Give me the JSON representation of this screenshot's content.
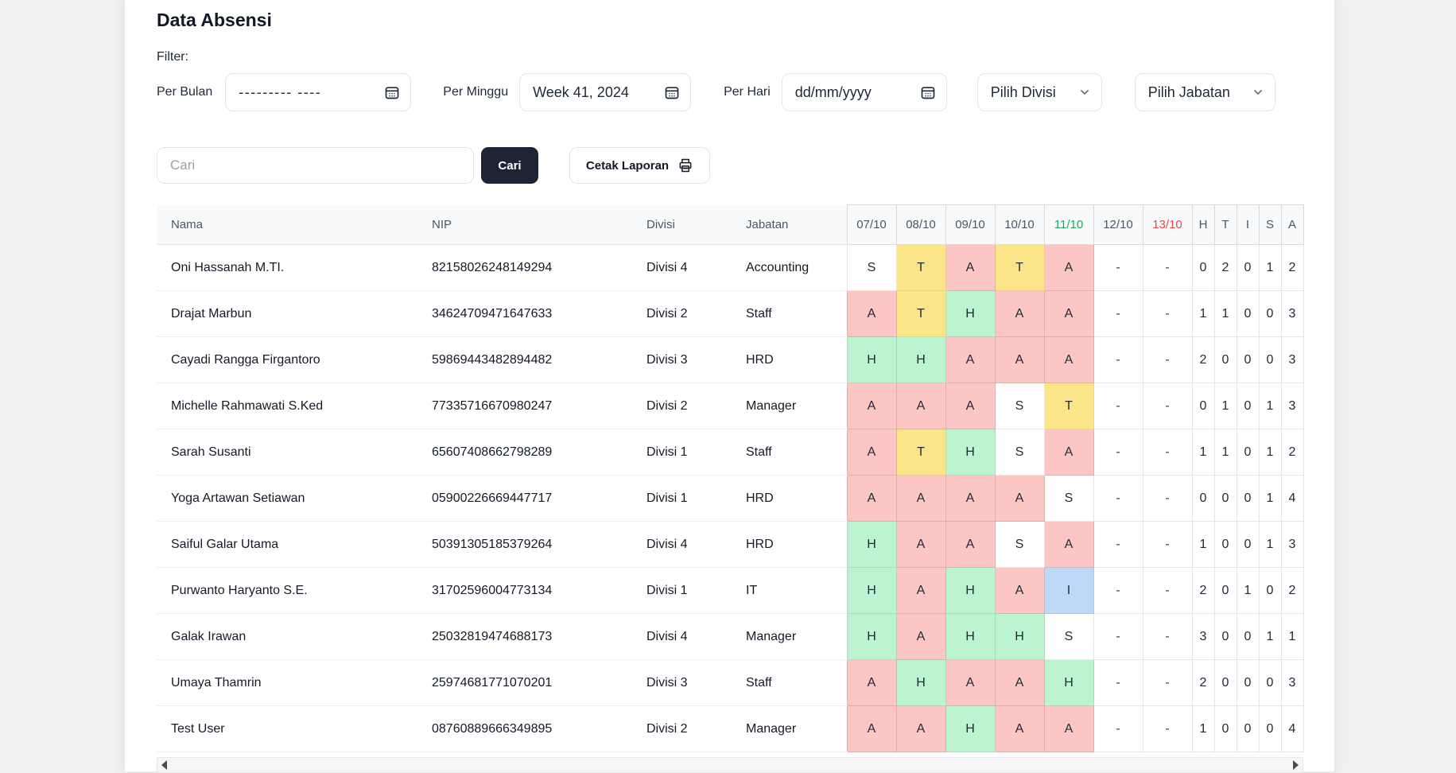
{
  "page": {
    "title": "Data Absensi",
    "filter_label": "Filter:"
  },
  "filters": {
    "per_bulan": {
      "label": "Per Bulan",
      "value": "--------- ----"
    },
    "per_minggu": {
      "label": "Per Minggu",
      "value": "Week 41, 2024"
    },
    "per_hari": {
      "label": "Per Hari",
      "value": "dd/mm/yyyy"
    },
    "divisi": {
      "placeholder": "Pilih Divisi"
    },
    "jabatan": {
      "placeholder": "Pilih Jabatan"
    }
  },
  "search": {
    "placeholder": "Cari",
    "button_label": "Cari",
    "print_label": "Cetak Laporan"
  },
  "icons": {
    "calendar": "calendar-icon",
    "chevron": "chevron-down-icon",
    "printer": "printer-icon",
    "scroll_left": "scroll-left-arrow-icon",
    "scroll_right": "scroll-right-arrow-icon"
  },
  "colors": {
    "header_green": "#22a75c",
    "header_red": "#e5484d",
    "primary_button": "#1d2535"
  },
  "status_styles": {
    "H": {
      "bg": "#bcf3d1",
      "border": "#97e5bb"
    },
    "T": {
      "bg": "#fae588",
      "border": "#edd276"
    },
    "A": {
      "bg": "#fbc6c4",
      "border": "#f2a6a4"
    },
    "I": {
      "bg": "#bed9f8",
      "border": "#a4c8f0"
    },
    "S": {
      "bg": "#ffffff",
      "border": "#e4e6ea"
    },
    "-": {
      "bg": "#ffffff",
      "border": "#e4e6ea"
    }
  },
  "table": {
    "columns": [
      "Nama",
      "NIP",
      "Divisi",
      "Jabatan"
    ],
    "date_columns": [
      {
        "label": "07/10",
        "color": ""
      },
      {
        "label": "08/10",
        "color": ""
      },
      {
        "label": "09/10",
        "color": ""
      },
      {
        "label": "10/10",
        "color": ""
      },
      {
        "label": "11/10",
        "color": "header_green"
      },
      {
        "label": "12/10",
        "color": ""
      },
      {
        "label": "13/10",
        "color": "header_red"
      }
    ],
    "summary_columns": [
      "H",
      "T",
      "I",
      "S",
      "A"
    ],
    "rows": [
      {
        "nama": "Oni Hassanah M.TI.",
        "nip": "82158026248149294",
        "divisi": "Divisi 4",
        "jabatan": "Accounting",
        "statuses": [
          "S",
          "T",
          "A",
          "T",
          "A",
          "-",
          "-"
        ],
        "summary": [
          "0",
          "2",
          "0",
          "1",
          "2"
        ]
      },
      {
        "nama": "Drajat Marbun",
        "nip": "34624709471647633",
        "divisi": "Divisi 2",
        "jabatan": "Staff",
        "statuses": [
          "A",
          "T",
          "H",
          "A",
          "A",
          "-",
          "-"
        ],
        "summary": [
          "1",
          "1",
          "0",
          "0",
          "3"
        ]
      },
      {
        "nama": "Cayadi Rangga Firgantoro",
        "nip": "59869443482894482",
        "divisi": "Divisi 3",
        "jabatan": "HRD",
        "statuses": [
          "H",
          "H",
          "A",
          "A",
          "A",
          "-",
          "-"
        ],
        "summary": [
          "2",
          "0",
          "0",
          "0",
          "3"
        ]
      },
      {
        "nama": "Michelle Rahmawati S.Ked",
        "nip": "77335716670980247",
        "divisi": "Divisi 2",
        "jabatan": "Manager",
        "statuses": [
          "A",
          "A",
          "A",
          "S",
          "T",
          "-",
          "-"
        ],
        "summary": [
          "0",
          "1",
          "0",
          "1",
          "3"
        ]
      },
      {
        "nama": "Sarah Susanti",
        "nip": "65607408662798289",
        "divisi": "Divisi 1",
        "jabatan": "Staff",
        "statuses": [
          "A",
          "T",
          "H",
          "S",
          "A",
          "-",
          "-"
        ],
        "summary": [
          "1",
          "1",
          "0",
          "1",
          "2"
        ]
      },
      {
        "nama": "Yoga Artawan Setiawan",
        "nip": "05900226669447717",
        "divisi": "Divisi 1",
        "jabatan": "HRD",
        "statuses": [
          "A",
          "A",
          "A",
          "A",
          "S",
          "-",
          "-"
        ],
        "summary": [
          "0",
          "0",
          "0",
          "1",
          "4"
        ]
      },
      {
        "nama": "Saiful Galar Utama",
        "nip": "50391305185379264",
        "divisi": "Divisi 4",
        "jabatan": "HRD",
        "statuses": [
          "H",
          "A",
          "A",
          "S",
          "A",
          "-",
          "-"
        ],
        "summary": [
          "1",
          "0",
          "0",
          "1",
          "3"
        ]
      },
      {
        "nama": "Purwanto Haryanto S.E.",
        "nip": "31702596004773134",
        "divisi": "Divisi 1",
        "jabatan": "IT",
        "statuses": [
          "H",
          "A",
          "H",
          "A",
          "I",
          "-",
          "-"
        ],
        "summary": [
          "2",
          "0",
          "1",
          "0",
          "2"
        ]
      },
      {
        "nama": "Galak Irawan",
        "nip": "25032819474688173",
        "divisi": "Divisi 4",
        "jabatan": "Manager",
        "statuses": [
          "H",
          "A",
          "H",
          "H",
          "S",
          "-",
          "-"
        ],
        "summary": [
          "3",
          "0",
          "0",
          "1",
          "1"
        ]
      },
      {
        "nama": "Umaya Thamrin",
        "nip": "25974681771070201",
        "divisi": "Divisi 3",
        "jabatan": "Staff",
        "statuses": [
          "A",
          "H",
          "A",
          "A",
          "H",
          "-",
          "-"
        ],
        "summary": [
          "2",
          "0",
          "0",
          "0",
          "3"
        ]
      },
      {
        "nama": "Test User",
        "nip": "08760889666349895",
        "divisi": "Divisi 2",
        "jabatan": "Manager",
        "statuses": [
          "A",
          "A",
          "H",
          "A",
          "A",
          "-",
          "-"
        ],
        "summary": [
          "1",
          "0",
          "0",
          "0",
          "4"
        ]
      }
    ]
  }
}
